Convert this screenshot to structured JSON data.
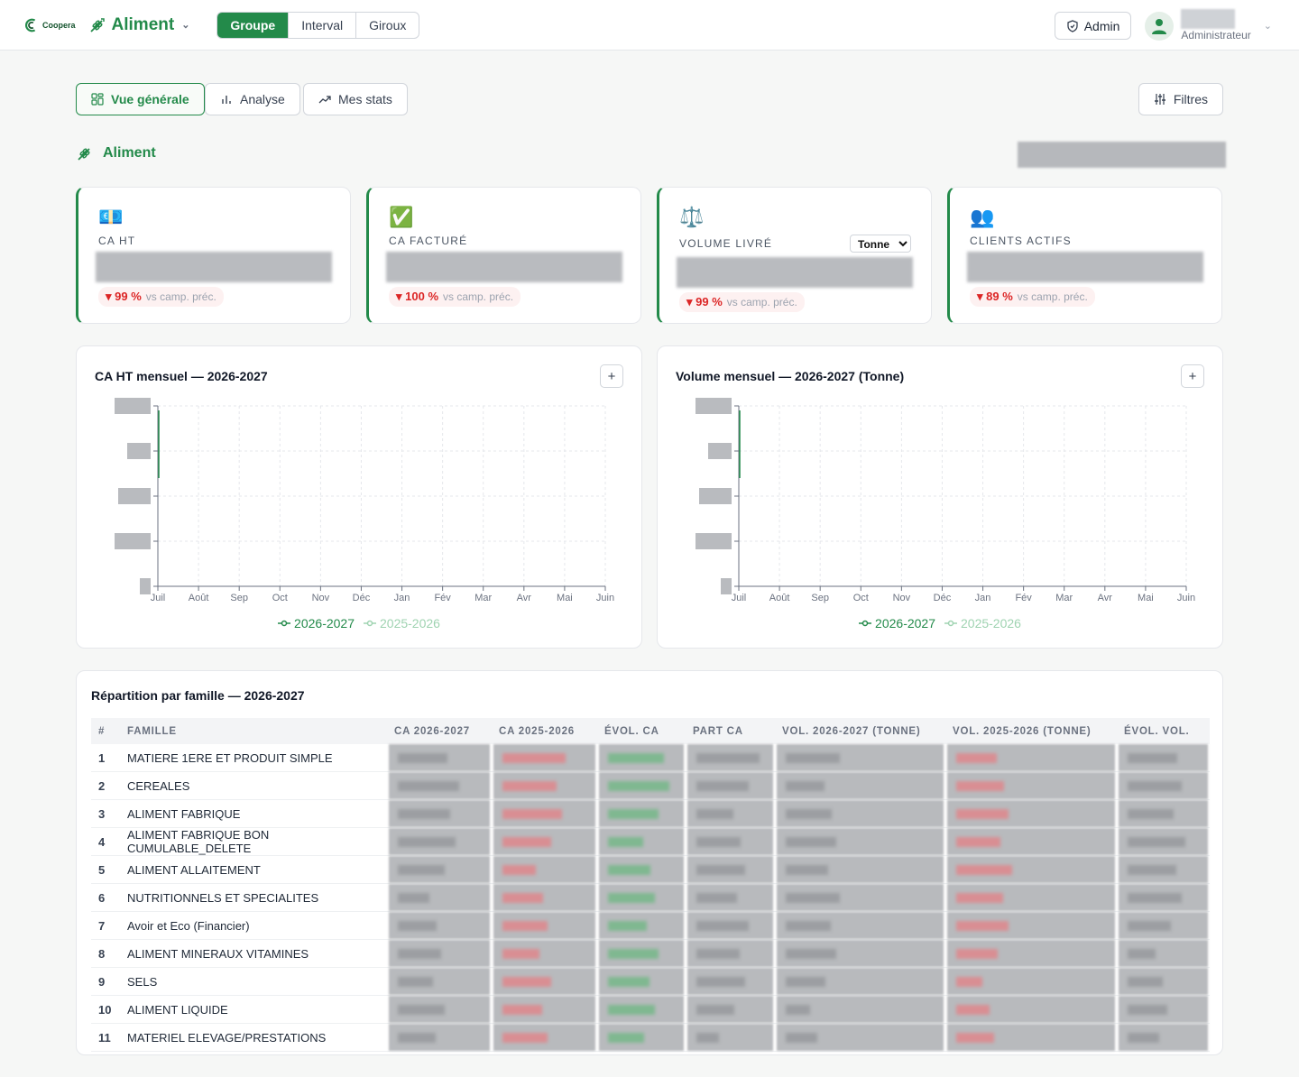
{
  "header": {
    "logo_text": "Coopera",
    "app_name": "Aliment",
    "segments": [
      "Groupe",
      "Interval",
      "Giroux"
    ],
    "active_segment": "Groupe",
    "admin_label": "Admin",
    "user_role": "Administrateur"
  },
  "nav": {
    "tabs": [
      "Vue générale",
      "Analyse",
      "Mes stats"
    ],
    "active_tab": "Vue générale",
    "filters_label": "Filtres"
  },
  "section_title": "Aliment",
  "kpis": [
    {
      "emoji": "💶",
      "label": "CA HT",
      "change": "▾ 99 %",
      "suffix": "vs camp. préc."
    },
    {
      "emoji": "✅",
      "label": "CA FACTURÉ",
      "change": "▾ 100 %",
      "suffix": "vs camp. préc."
    },
    {
      "emoji": "⚖️",
      "label": "VOLUME LIVRÉ",
      "change": "▾ 99 %",
      "suffix": "vs camp. préc.",
      "unit_select": "Tonne"
    },
    {
      "emoji": "👥",
      "label": "CLIENTS ACTIFS",
      "change": "▾ 89 %",
      "suffix": "vs camp. préc."
    }
  ],
  "charts": {
    "ca": {
      "title": "CA HT mensuel — 2026-2027"
    },
    "volume": {
      "title": "Volume mensuel — 2026-2027 (Tonne)"
    }
  },
  "chart_data": [
    {
      "type": "line",
      "title": "CA HT mensuel — 2026-2027",
      "categories": [
        "Juil",
        "Août",
        "Sep",
        "Oct",
        "Nov",
        "Déc",
        "Jan",
        "Fév",
        "Mar",
        "Avr",
        "Mai",
        "Juin"
      ],
      "series": [
        {
          "name": "2026-2027",
          "values": [
            null,
            null,
            null,
            null,
            null,
            null,
            null,
            null,
            null,
            null,
            null,
            null
          ]
        },
        {
          "name": "2025-2026",
          "values": [
            null,
            null,
            null,
            null,
            null,
            null,
            null,
            null,
            null,
            null,
            null,
            null
          ]
        }
      ],
      "grid": true,
      "legend_position": "bottom"
    },
    {
      "type": "line",
      "title": "Volume mensuel — 2026-2027 (Tonne)",
      "categories": [
        "Juil",
        "Août",
        "Sep",
        "Oct",
        "Nov",
        "Déc",
        "Jan",
        "Fév",
        "Mar",
        "Avr",
        "Mai",
        "Juin"
      ],
      "series": [
        {
          "name": "2026-2027",
          "values": [
            null,
            null,
            null,
            null,
            null,
            null,
            null,
            null,
            null,
            null,
            null,
            null
          ]
        },
        {
          "name": "2025-2026",
          "values": [
            null,
            null,
            null,
            null,
            null,
            null,
            null,
            null,
            null,
            null,
            null,
            null
          ]
        }
      ],
      "grid": true,
      "legend_position": "bottom"
    }
  ],
  "table": {
    "title": "Répartition par famille — 2026-2027",
    "columns": [
      "#",
      "FAMILLE",
      "CA 2026-2027",
      "CA 2025-2026",
      "ÉVOL. CA",
      "PART CA",
      "VOL. 2026-2027 (TONNE)",
      "VOL. 2025-2026 (TONNE)",
      "ÉVOL. VOL."
    ],
    "rows": [
      {
        "n": "1",
        "famille": "MATIERE 1ERE ET PRODUIT SIMPLE"
      },
      {
        "n": "2",
        "famille": "CEREALES"
      },
      {
        "n": "3",
        "famille": "ALIMENT FABRIQUE"
      },
      {
        "n": "4",
        "famille": "ALIMENT FABRIQUE BON CUMULABLE_DELETE"
      },
      {
        "n": "5",
        "famille": "ALIMENT ALLAITEMENT"
      },
      {
        "n": "6",
        "famille": "NUTRITIONNELS ET SPECIALITES"
      },
      {
        "n": "7",
        "famille": "Avoir et Eco (Financier)"
      },
      {
        "n": "8",
        "famille": "ALIMENT MINERAUX VITAMINES"
      },
      {
        "n": "9",
        "famille": "SELS"
      },
      {
        "n": "10",
        "famille": "ALIMENT LIQUIDE"
      },
      {
        "n": "11",
        "famille": "MATERIEL ELEVAGE/PRESTATIONS"
      }
    ]
  },
  "colors": {
    "accent": "#238a4a",
    "accent_light": "#9fd3b1",
    "negative": "#dc2626"
  }
}
